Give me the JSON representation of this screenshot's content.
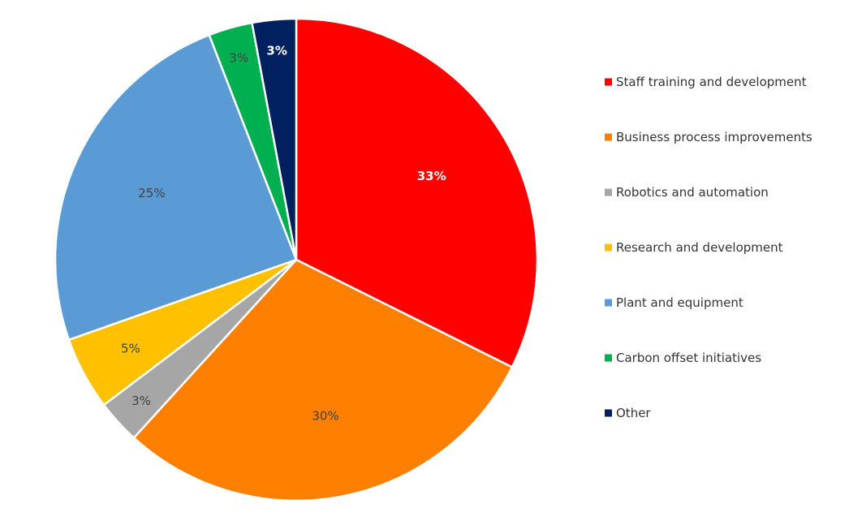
{
  "chart_data": {
    "type": "pie",
    "start_angle_deg": 0,
    "direction": "clockwise",
    "legend_position": "right",
    "slices": [
      {
        "name": "Staff training and development",
        "value": 33,
        "label": "33%",
        "color": "#FF0000",
        "label_color": "#FFFFFF"
      },
      {
        "name": "Business process improvements",
        "value": 30,
        "label": "30%",
        "color": "#FF8000",
        "label_color": "#404040"
      },
      {
        "name": "Robotics and automation",
        "value": 3,
        "label": "3%",
        "color": "#A6A6A6",
        "label_color": "#404040"
      },
      {
        "name": "Research and development",
        "value": 5,
        "label": "5%",
        "color": "#FFC000",
        "label_color": "#404040"
      },
      {
        "name": "Plant and equipment",
        "value": 25,
        "label": "25%",
        "color": "#5B9BD5",
        "label_color": "#404040"
      },
      {
        "name": "Carbon offset initiatives",
        "value": 3,
        "label": "3%",
        "color": "#00B050",
        "label_color": "#404040"
      },
      {
        "name": "Other",
        "value": 3,
        "label": "3%",
        "color": "#002060",
        "label_color": "#FFFFFF"
      }
    ]
  }
}
